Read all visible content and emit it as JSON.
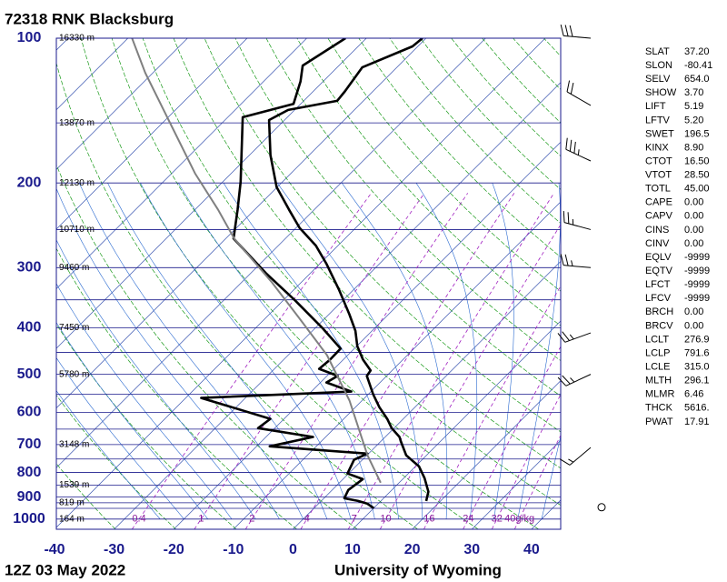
{
  "title": "72318 RNK Blacksburg",
  "footer_left": "12Z 03 May 2022",
  "footer_right": "University of Wyoming",
  "chart_data": {
    "type": "skewt",
    "xlim": [
      -40,
      44.9
    ],
    "xticks": [
      -40,
      -30,
      -20,
      -10,
      0,
      10,
      20,
      30,
      40
    ],
    "ylim": [
      1050,
      100
    ],
    "log_y": true,
    "yticks": [
      100,
      200,
      300,
      400,
      500,
      600,
      700,
      800,
      900,
      1000
    ],
    "isobars": [
      100,
      150,
      200,
      250,
      300,
      350,
      400,
      450,
      500,
      550,
      600,
      650,
      700,
      750,
      800,
      850,
      900,
      925,
      950,
      1000,
      1050
    ],
    "height_labels": [
      {
        "pressure": 100,
        "label": "16330 m"
      },
      {
        "pressure": 150,
        "label": "13870 m"
      },
      {
        "pressure": 200,
        "label": "12130 m"
      },
      {
        "pressure": 250,
        "label": "10710 m"
      },
      {
        "pressure": 300,
        "label": "9460 m"
      },
      {
        "pressure": 400,
        "label": "7450 m"
      },
      {
        "pressure": 500,
        "label": "5780 m"
      },
      {
        "pressure": 700,
        "label": "3148 m"
      },
      {
        "pressure": 850,
        "label": "1539 m"
      },
      {
        "pressure": 925,
        "label": "819 m"
      },
      {
        "pressure": 1000,
        "label": "164 m"
      }
    ],
    "mixing_ratios": [
      0.4,
      1,
      2,
      4,
      7,
      10,
      16,
      24,
      32,
      {
        "value": 40,
        "label": "40g/kg"
      }
    ],
    "series": [
      {
        "color": "#000000",
        "pressure": [
          917,
          877,
          822,
          777,
          737,
          690,
          675,
          647,
          619,
          585,
          550,
          504,
          491,
          466,
          437,
          406,
          375,
          333,
          295,
          270,
          248,
          227,
          204,
          175,
          148,
          141,
          135,
          129,
          115,
          104,
          100
        ],
        "values": [
          17.6,
          16.4,
          13.5,
          10.6,
          6.6,
          3.4,
          2.4,
          -0.4,
          -2.7,
          -6.0,
          -9.2,
          -13.3,
          -13.6,
          -16.7,
          -19.9,
          -22.8,
          -26.6,
          -32.5,
          -38.8,
          -43.7,
          -49.4,
          -54.3,
          -60.1,
          -66.5,
          -72.6,
          -71.1,
          -64.4,
          -64.7,
          -65.8,
          -60.9,
          -60.6
        ]
      },
      {
        "color": "#000000",
        "pressure": [
          949,
          929,
          917,
          905,
          870,
          826,
          804,
          753,
          731,
          706,
          675,
          647,
          619,
          560,
          543,
          520,
          504,
          487,
          466,
          442,
          400,
          351,
          308,
          261,
          227,
          199,
          146,
          137,
          123,
          114,
          100
        ],
        "values": [
          10.0,
          8.2,
          6.2,
          3.4,
          2.7,
          3.3,
          -0.2,
          -1.4,
          -0.2,
          -17.8,
          -12.1,
          -22.8,
          -22.3,
          -37.4,
          -13.3,
          -19.0,
          -18.2,
          -22.5,
          -22.2,
          -22.3,
          -28.9,
          -38.0,
          -47.5,
          -58.7,
          -62.9,
          -67.0,
          -77.5,
          -71.2,
          -73.8,
          -76.1,
          -73.5
        ]
      },
      {
        "color": "#808080",
        "pressure": [
          840,
          737,
          567,
          456,
          383,
          322,
          261,
          227,
          191,
          147,
          118,
          100
        ],
        "values": [
          6.9,
          0.1,
          -12.1,
          -23.5,
          -34.2,
          -44.9,
          -58.6,
          -66.2,
          -76.1,
          -89.8,
          -101.3,
          -109.3
        ]
      }
    ],
    "winds": {
      "pressure": [
        100,
        138,
        180,
        250,
        300,
        410,
        500,
        710,
        945
      ],
      "direction": [
        275,
        300,
        295,
        285,
        275,
        250,
        245,
        230,
        0
      ],
      "speed": [
        30,
        20,
        35,
        25,
        25,
        25,
        25,
        15,
        0
      ]
    }
  },
  "indices": [
    [
      "SLAT",
      "37.20"
    ],
    [
      "SLON",
      "-80.41"
    ],
    [
      "SELV",
      "654.0"
    ],
    [
      "SHOW",
      "3.70"
    ],
    [
      "LIFT",
      "5.19"
    ],
    [
      "LFTV",
      "5.20"
    ],
    [
      "SWET",
      "196.5"
    ],
    [
      "KINX",
      "8.90"
    ],
    [
      "CTOT",
      "16.50"
    ],
    [
      "VTOT",
      "28.50"
    ],
    [
      "TOTL",
      "45.00"
    ],
    [
      "CAPE",
      "0.00"
    ],
    [
      "CAPV",
      "0.00"
    ],
    [
      "CINS",
      "0.00"
    ],
    [
      "CINV",
      "0.00"
    ],
    [
      "EQLV",
      "-9999"
    ],
    [
      "EQTV",
      "-9999"
    ],
    [
      "LFCT",
      "-9999"
    ],
    [
      "LFCV",
      "-9999"
    ],
    [
      "BRCH",
      "0.00"
    ],
    [
      "BRCV",
      "0.00"
    ],
    [
      "LCLT",
      "276.9"
    ],
    [
      "LCLP",
      "791.6"
    ],
    [
      "LCLE",
      "315.0"
    ],
    [
      "MLTH",
      "296.1"
    ],
    [
      "MLMR",
      "6.46"
    ],
    [
      "THCK",
      "5616."
    ],
    [
      "PWAT",
      "17.91"
    ]
  ]
}
